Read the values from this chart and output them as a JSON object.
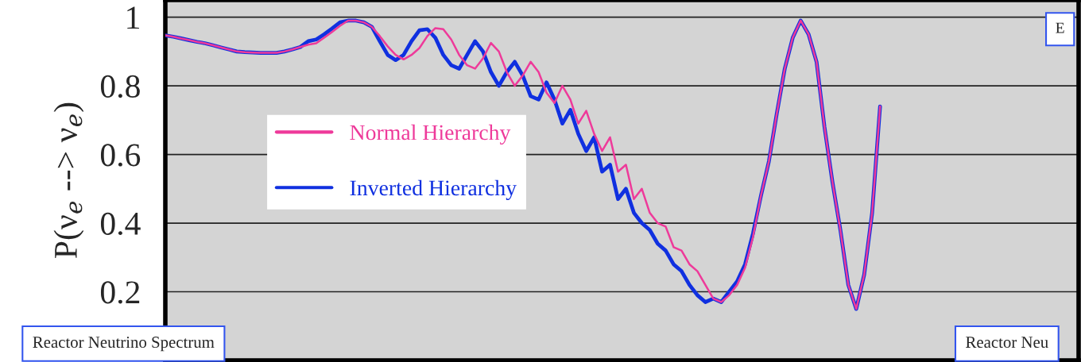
{
  "chart_data": {
    "type": "line",
    "ylabel": "P(ν$_{e}$ --> ν$_{e}$)",
    "categories": [
      null,
      null,
      null,
      null,
      null,
      null,
      null,
      null,
      null,
      null,
      null,
      null,
      null,
      null,
      null,
      null,
      null,
      null,
      null,
      null,
      null,
      null,
      null,
      null,
      null,
      null,
      null,
      null,
      null,
      null,
      null,
      null,
      null,
      null,
      null,
      null,
      null,
      null,
      null,
      null,
      null,
      null,
      null,
      null,
      null,
      null,
      null,
      null,
      null,
      null,
      null,
      null,
      null,
      null,
      null,
      null,
      null,
      null,
      null,
      null,
      null,
      null,
      null,
      null,
      null,
      null,
      null,
      null,
      null,
      null,
      null,
      null,
      null,
      null,
      null,
      null,
      null,
      null,
      null,
      null,
      null,
      null,
      null,
      null,
      null,
      null,
      null,
      null,
      null,
      null,
      null,
      null,
      null,
      null,
      null,
      null,
      null,
      null,
      null,
      null,
      null,
      null,
      null,
      null,
      null,
      null,
      null,
      null,
      null,
      null,
      null,
      null,
      null,
      null,
      null,
      null
    ],
    "series": [
      {
        "name": "Normal Hierarchy",
        "color": "#ee3a9a",
        "values": [
          0.947,
          0.943,
          0.938,
          0.933,
          0.928,
          0.924,
          0.918,
          0.912,
          0.906,
          0.9,
          0.898,
          0.897,
          0.896,
          0.896,
          0.896,
          0.9,
          0.906,
          0.913,
          0.92,
          0.924,
          0.94,
          0.957,
          0.975,
          0.99,
          0.99,
          0.985,
          0.972,
          0.945,
          0.915,
          0.89,
          0.877,
          0.89,
          0.91,
          0.945,
          0.968,
          0.965,
          0.935,
          0.89,
          0.86,
          0.85,
          0.88,
          0.925,
          0.9,
          0.84,
          0.8,
          0.83,
          0.87,
          0.84,
          0.78,
          0.75,
          0.8,
          0.76,
          0.69,
          0.727,
          0.66,
          0.61,
          0.65,
          0.55,
          0.57,
          0.47,
          0.5,
          0.43,
          0.4,
          0.39,
          0.33,
          0.32,
          0.28,
          0.26,
          0.22,
          0.18,
          0.17,
          0.19,
          0.22,
          0.27,
          0.36,
          0.48,
          0.58,
          0.72,
          0.85,
          0.94,
          0.99,
          0.95,
          0.87,
          0.68,
          0.52,
          0.38,
          0.22,
          0.15,
          0.25,
          0.43,
          0.74,
          null,
          null,
          null,
          null,
          null,
          null,
          null,
          null,
          null,
          null,
          null,
          null,
          null,
          null,
          null,
          null,
          null,
          null,
          null,
          null,
          null,
          null,
          null,
          null,
          null
        ]
      },
      {
        "name": "Inverted Hierarchy",
        "color": "#1030e0",
        "values": [
          0.947,
          0.943,
          0.938,
          0.933,
          0.928,
          0.924,
          0.918,
          0.912,
          0.906,
          0.9,
          0.898,
          0.897,
          0.896,
          0.896,
          0.896,
          0.9,
          0.906,
          0.913,
          0.93,
          0.935,
          0.95,
          0.967,
          0.985,
          0.99,
          0.99,
          0.985,
          0.972,
          0.93,
          0.89,
          0.875,
          0.89,
          0.93,
          0.962,
          0.965,
          0.94,
          0.89,
          0.86,
          0.85,
          0.89,
          0.93,
          0.9,
          0.84,
          0.8,
          0.84,
          0.87,
          0.83,
          0.77,
          0.76,
          0.81,
          0.76,
          0.69,
          0.73,
          0.66,
          0.61,
          0.65,
          0.55,
          0.57,
          0.47,
          0.5,
          0.43,
          0.4,
          0.38,
          0.34,
          0.32,
          0.28,
          0.26,
          0.22,
          0.19,
          0.17,
          0.18,
          0.17,
          0.2,
          0.23,
          0.28,
          0.37,
          0.48,
          0.58,
          0.72,
          0.85,
          0.94,
          0.99,
          0.95,
          0.87,
          0.68,
          0.52,
          0.38,
          0.22,
          0.15,
          0.25,
          0.43,
          0.74,
          null,
          null,
          null,
          null,
          null,
          null,
          null,
          null,
          null,
          null,
          null,
          null,
          null,
          null,
          null,
          null,
          null,
          null,
          null,
          null,
          null,
          null,
          null,
          null,
          null
        ]
      }
    ],
    "ylim": [
      0,
      1.05
    ],
    "yticks": [
      0.2,
      0.4,
      0.6,
      0.8,
      1
    ],
    "tick_labels": "y",
    "grid": "y",
    "legend": "left",
    "line_style": "solid",
    "marker": "none",
    "annotations": [
      "Reactor Neutrino Spectrum",
      "Reactor Neu",
      "E"
    ]
  }
}
